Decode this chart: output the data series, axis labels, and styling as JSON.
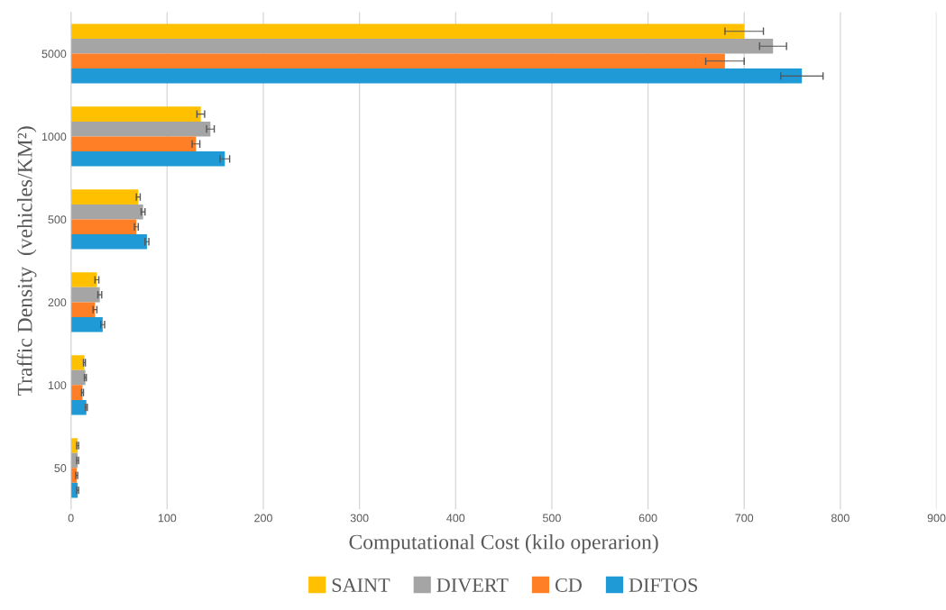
{
  "chart_data": {
    "type": "bar",
    "orientation": "horizontal",
    "xlabel": "Computational Cost (kilo operarion)",
    "ylabel": "Traffic Density  (vehicles/KM²)",
    "categories": [
      "5000",
      "1000",
      "500",
      "200",
      "100",
      "50"
    ],
    "series": [
      {
        "name": "SAINT",
        "color": "#ffc000",
        "values": [
          700,
          135,
          70,
          27,
          14,
          7
        ],
        "errors": [
          20,
          4,
          2,
          2,
          1,
          1
        ]
      },
      {
        "name": "DIVERT",
        "color": "#a5a5a5",
        "values": [
          730,
          145,
          75,
          30,
          15,
          7
        ],
        "errors": [
          14,
          4,
          2,
          2,
          1,
          1
        ]
      },
      {
        "name": "CD",
        "color": "#ff7f27",
        "values": [
          680,
          130,
          68,
          25,
          12,
          6
        ],
        "errors": [
          20,
          4,
          2,
          2,
          1,
          1
        ]
      },
      {
        "name": "DIFTOS",
        "color": "#1f9ad6",
        "values": [
          760,
          160,
          79,
          33,
          16,
          7
        ],
        "errors": [
          22,
          5,
          2,
          2,
          1,
          1
        ]
      }
    ],
    "xlim": [
      0,
      900
    ],
    "xticks": [
      0,
      100,
      200,
      300,
      400,
      500,
      600,
      700,
      800,
      900
    ],
    "grid": "x",
    "legend": "bottom"
  }
}
